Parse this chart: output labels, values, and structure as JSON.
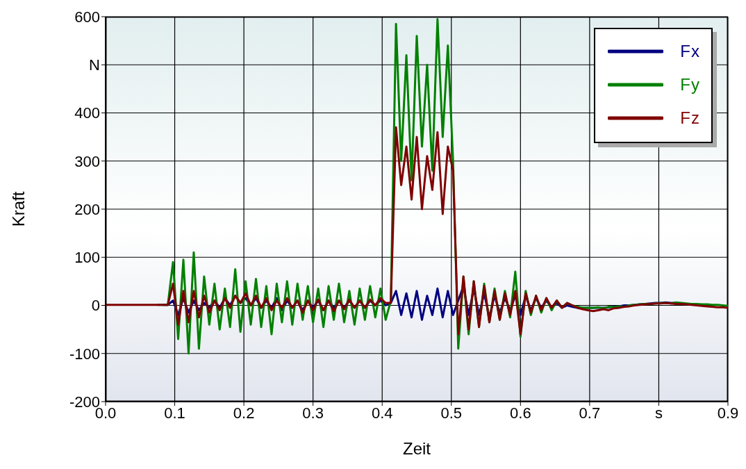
{
  "chart_data": {
    "type": "line",
    "xlabel": "Zeit",
    "ylabel": "Kraft",
    "grid": true,
    "legend": "top right",
    "xlim": [
      0,
      0.9
    ],
    "ylim": [
      -200,
      600
    ],
    "xticks": [
      {
        "value": 0,
        "label": "0.0"
      },
      {
        "value": 0.1,
        "label": "0.1"
      },
      {
        "value": 0.2,
        "label": "0.2"
      },
      {
        "value": 0.3,
        "label": "0.3"
      },
      {
        "value": 0.4,
        "label": "0.4"
      },
      {
        "value": 0.5,
        "label": "0.5"
      },
      {
        "value": 0.6,
        "label": "0.6"
      },
      {
        "value": 0.7,
        "label": "0.7"
      },
      {
        "value": 0.8,
        "label": "s"
      },
      {
        "value": 0.9,
        "label": "0.9"
      }
    ],
    "yticks": [
      -200,
      -100,
      0,
      100,
      200,
      300,
      400,
      {
        "value": 500,
        "label": "N"
      },
      600
    ],
    "x": [
      0,
      0.0075,
      0.015,
      0.0225,
      0.03,
      0.0375,
      0.045,
      0.0525,
      0.06,
      0.0675,
      0.075,
      0.0825,
      0.09,
      0.0975,
      0.105,
      0.1125,
      0.12,
      0.1275,
      0.135,
      0.1425,
      0.15,
      0.1575,
      0.165,
      0.1725,
      0.18,
      0.1875,
      0.195,
      0.2025,
      0.21,
      0.2175,
      0.225,
      0.2325,
      0.24,
      0.2475,
      0.255,
      0.2625,
      0.27,
      0.2775,
      0.285,
      0.2925,
      0.3,
      0.3075,
      0.315,
      0.3225,
      0.33,
      0.3375,
      0.345,
      0.3525,
      0.36,
      0.3675,
      0.375,
      0.3825,
      0.39,
      0.3975,
      0.405,
      0.4125,
      0.42,
      0.4275,
      0.435,
      0.4425,
      0.45,
      0.4575,
      0.465,
      0.4725,
      0.48,
      0.4875,
      0.495,
      0.5025,
      0.51,
      0.5175,
      0.525,
      0.5325,
      0.54,
      0.5475,
      0.555,
      0.5625,
      0.57,
      0.5775,
      0.585,
      0.5925,
      0.6,
      0.6075,
      0.615,
      0.6225,
      0.63,
      0.6375,
      0.645,
      0.6525,
      0.66,
      0.6675,
      0.675,
      0.6825,
      0.69,
      0.6975,
      0.705,
      0.7125,
      0.72,
      0.7275,
      0.735,
      0.7425,
      0.75,
      0.7575,
      0.765,
      0.7725,
      0.78,
      0.7875,
      0.795,
      0.8025,
      0.81,
      0.8175,
      0.825,
      0.8325,
      0.84,
      0.8475,
      0.855,
      0.8625,
      0.87,
      0.8775,
      0.885,
      0.8925,
      0.9
    ],
    "series": [
      {
        "name": "Fx",
        "color": "#000080",
        "values": [
          null,
          null,
          null,
          null,
          null,
          null,
          null,
          null,
          null,
          null,
          null,
          1,
          1,
          10,
          -20,
          15,
          -15,
          10,
          -10,
          5,
          -5,
          10,
          -5,
          15,
          0,
          20,
          5,
          15,
          0,
          15,
          -5,
          10,
          -5,
          15,
          -10,
          10,
          -5,
          10,
          -10,
          10,
          -5,
          10,
          -10,
          10,
          -5,
          10,
          -5,
          10,
          -5,
          10,
          -5,
          10,
          0,
          10,
          0,
          5,
          30,
          -20,
          25,
          -25,
          30,
          -30,
          20,
          -20,
          35,
          -25,
          30,
          -20,
          10,
          40,
          -20,
          35,
          -20,
          25,
          -25,
          20,
          -15,
          15,
          -10,
          20,
          -20,
          20,
          -10,
          15,
          -5,
          10,
          -5,
          5,
          -5,
          0,
          -3,
          -5,
          -5,
          -5,
          -5,
          -5,
          -5,
          -4,
          -3,
          -2,
          0,
          0,
          1,
          2,
          3,
          4,
          5,
          5,
          6,
          5,
          5,
          null,
          null,
          null,
          null,
          null,
          null,
          null,
          null,
          null,
          null
        ]
      },
      {
        "name": "Fy",
        "color": "#008000",
        "values": [
          null,
          null,
          null,
          null,
          null,
          null,
          null,
          null,
          null,
          null,
          1,
          1,
          1,
          90,
          -70,
          95,
          -100,
          110,
          -90,
          60,
          -40,
          45,
          -50,
          35,
          -45,
          75,
          -55,
          50,
          -40,
          55,
          -45,
          40,
          -60,
          45,
          -35,
          50,
          -40,
          45,
          -30,
          40,
          -35,
          35,
          -45,
          40,
          -30,
          45,
          -35,
          30,
          -40,
          35,
          -30,
          40,
          -25,
          35,
          -30,
          10,
          585,
          300,
          520,
          260,
          560,
          330,
          500,
          280,
          595,
          350,
          540,
          300,
          -90,
          60,
          -60,
          50,
          -45,
          45,
          -35,
          35,
          -30,
          30,
          -25,
          70,
          -65,
          30,
          -20,
          20,
          -15,
          15,
          -10,
          10,
          -5,
          5,
          0,
          -3,
          -5,
          -5,
          -5,
          -4,
          -6,
          -3,
          -4,
          -2,
          -3,
          0,
          1,
          2,
          3,
          3,
          4,
          5,
          5,
          4,
          6,
          5,
          4,
          3,
          3,
          2,
          2,
          1,
          1,
          0,
          -1
        ]
      },
      {
        "name": "Fz",
        "color": "#800000",
        "values": [
          1,
          1,
          1,
          1,
          1,
          1,
          1,
          1,
          1,
          1,
          1,
          1,
          1,
          45,
          -40,
          30,
          -35,
          30,
          -25,
          20,
          -15,
          10,
          -10,
          15,
          -5,
          20,
          5,
          25,
          0,
          20,
          -5,
          15,
          -10,
          10,
          -5,
          15,
          -5,
          10,
          -15,
          10,
          -10,
          12,
          -10,
          10,
          -12,
          10,
          -8,
          12,
          -5,
          10,
          -5,
          12,
          0,
          15,
          5,
          5,
          370,
          250,
          330,
          220,
          350,
          200,
          310,
          240,
          360,
          190,
          330,
          280,
          -60,
          60,
          -50,
          50,
          -45,
          40,
          -35,
          30,
          -30,
          25,
          -20,
          30,
          -60,
          25,
          -15,
          20,
          -10,
          15,
          -5,
          10,
          -5,
          5,
          0,
          -5,
          -8,
          -10,
          -12,
          -10,
          -8,
          -10,
          -6,
          -5,
          -3,
          -2,
          0,
          1,
          2,
          3,
          4,
          4,
          5,
          4,
          3,
          3,
          2,
          1,
          0,
          -1,
          -2,
          -3,
          -4,
          -4,
          -5
        ]
      }
    ]
  }
}
